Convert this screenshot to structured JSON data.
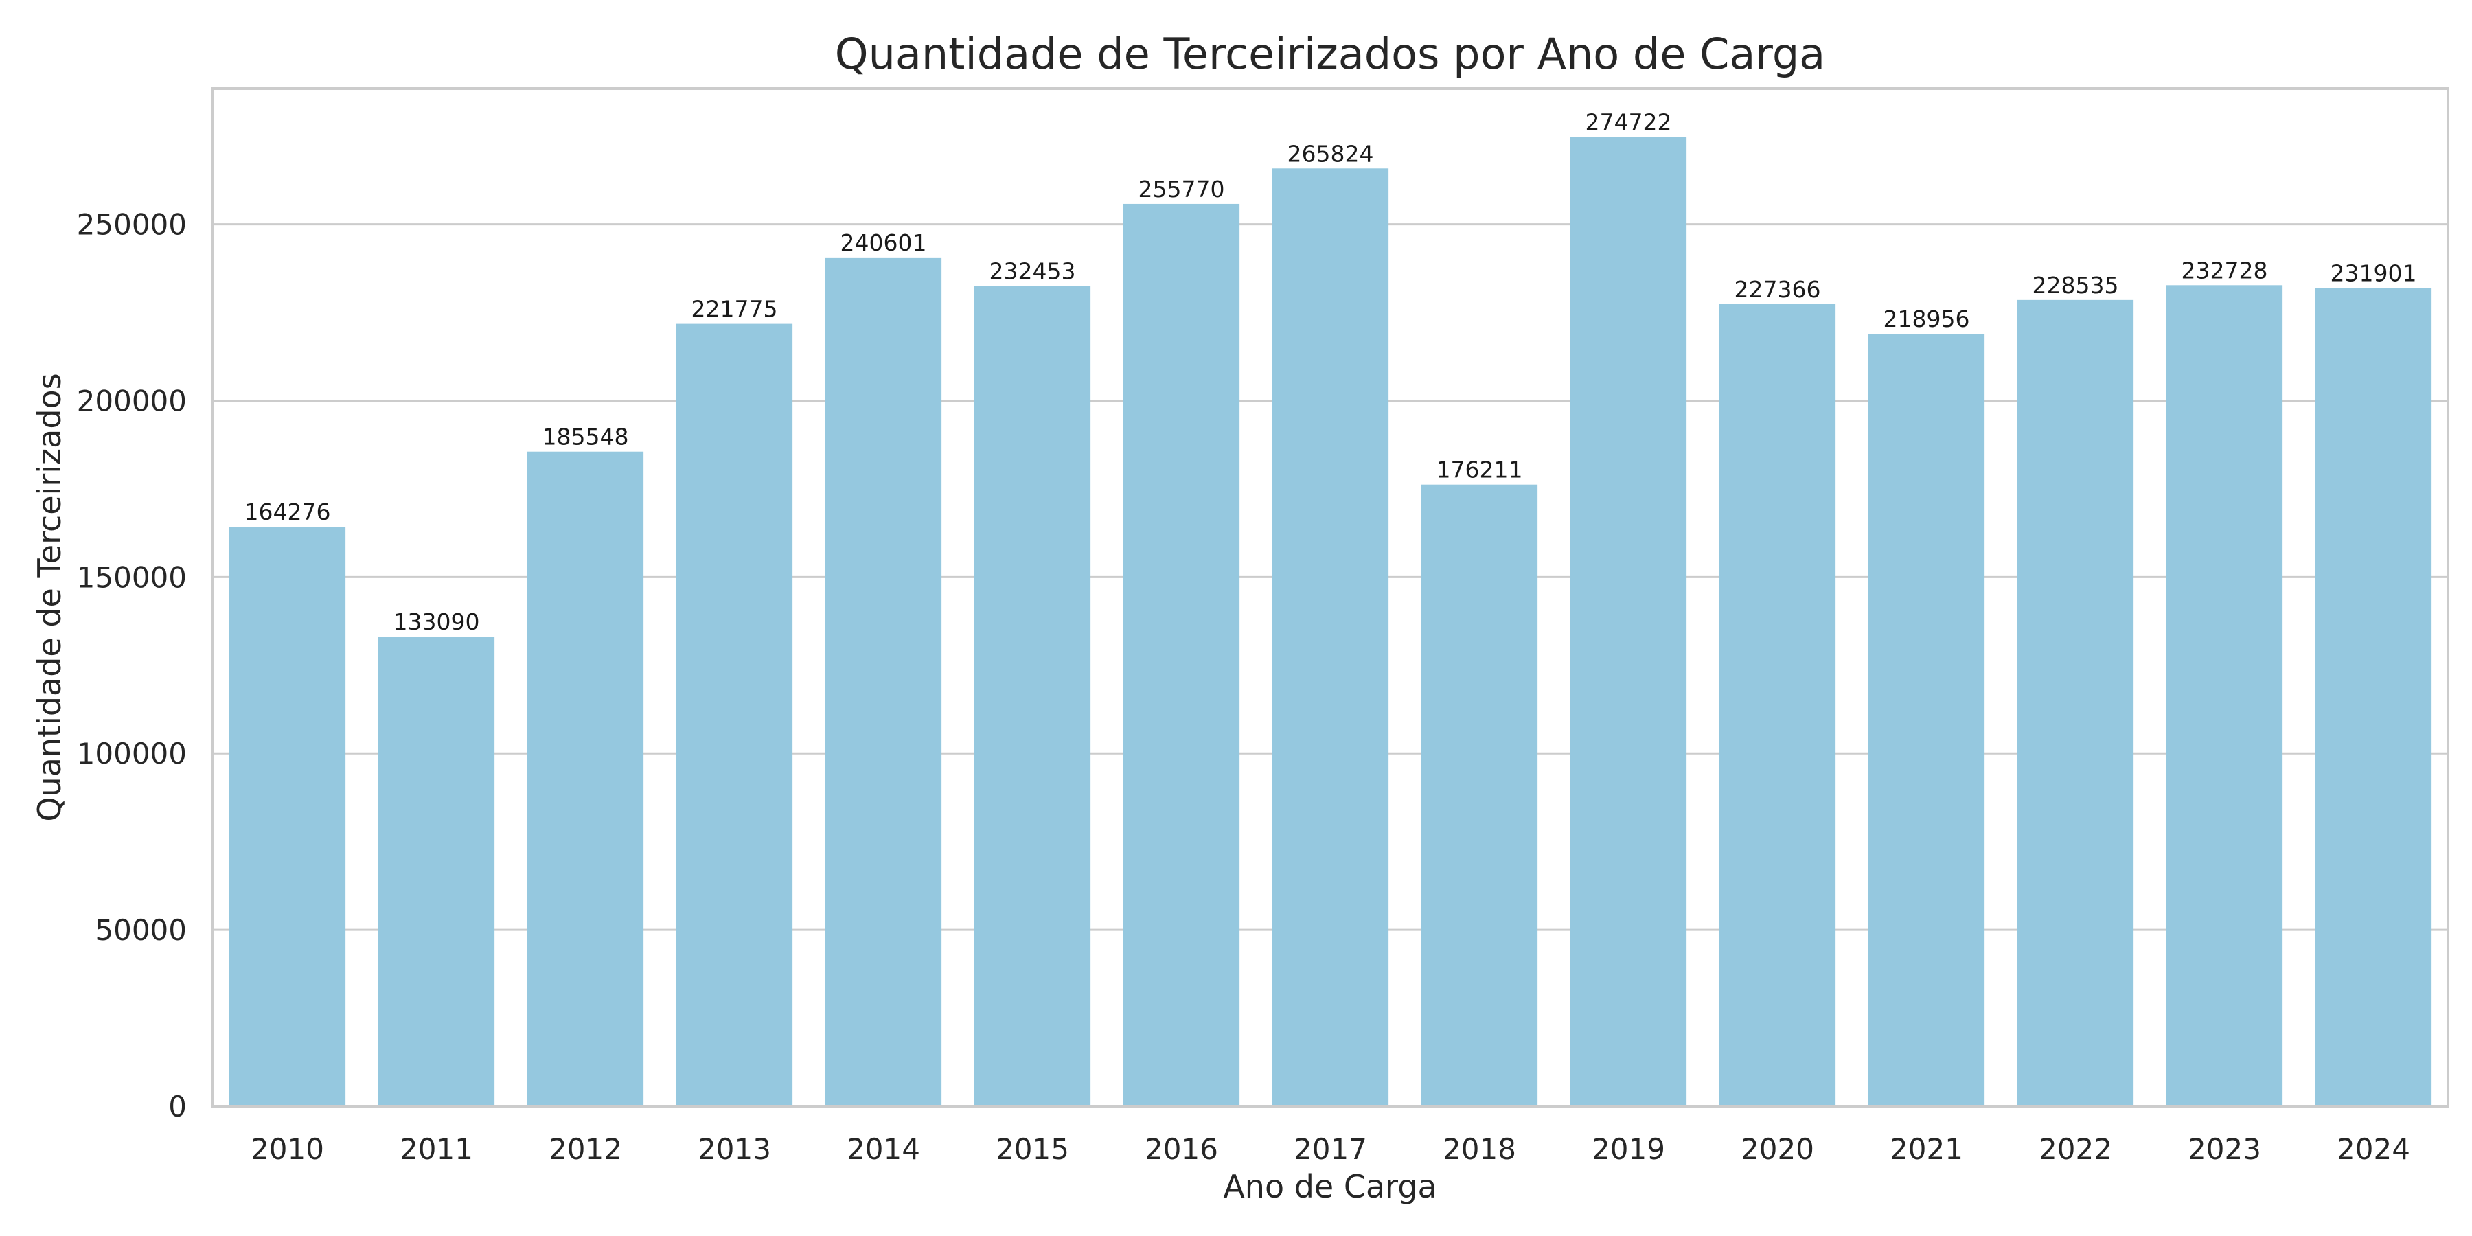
{
  "chart_data": {
    "type": "bar",
    "title": "Quantidade de Terceirizados por Ano de Carga",
    "xlabel": "Ano de Carga",
    "ylabel": "Quantidade de Terceirizados",
    "categories": [
      "2010",
      "2011",
      "2012",
      "2013",
      "2014",
      "2015",
      "2016",
      "2017",
      "2018",
      "2019",
      "2020",
      "2021",
      "2022",
      "2023",
      "2024"
    ],
    "values": [
      164276,
      133090,
      185548,
      221775,
      240601,
      232453,
      255770,
      265824,
      176211,
      274722,
      227366,
      218956,
      228535,
      232728,
      231901
    ],
    "ylim": [
      0,
      288458
    ],
    "yticks": [
      0,
      50000,
      100000,
      150000,
      200000,
      250000
    ],
    "grid": "horizontal",
    "legend": "none",
    "colors": {
      "bar": "#95c8df",
      "grid": "#cccccc",
      "spine": "#cccccc",
      "text": "#262626"
    }
  }
}
